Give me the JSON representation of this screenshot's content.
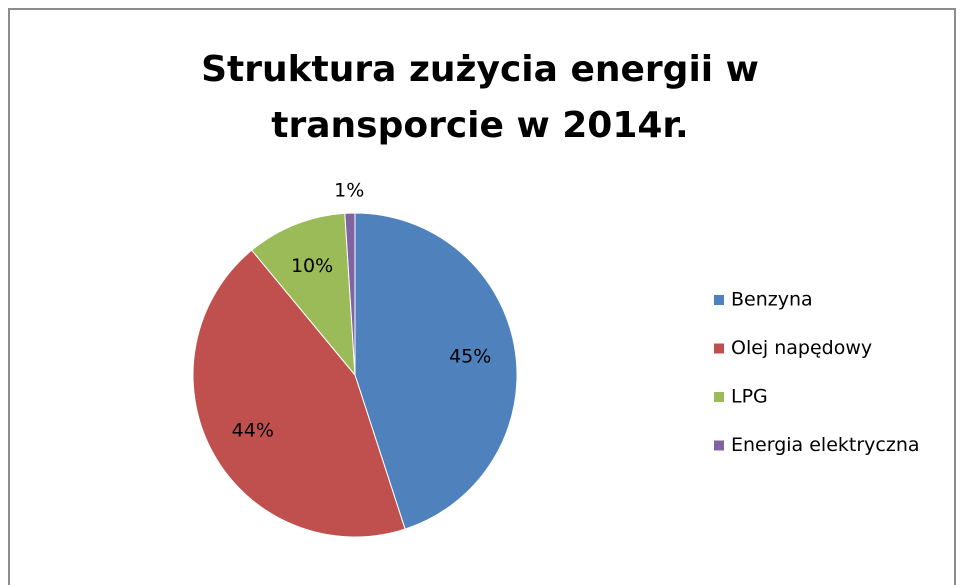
{
  "chart_data": {
    "type": "pie",
    "title": "Struktura zużycia energii w transporcie w 2014r.",
    "categories": [
      "Benzyna",
      "Olej napędowy",
      "LPG",
      "Energia elektryczna"
    ],
    "values": [
      45,
      44,
      10,
      1
    ],
    "value_labels": [
      "45%",
      "44%",
      "10%",
      "1%"
    ],
    "colors": [
      "#4f81bd",
      "#c0504d",
      "#9bbb59",
      "#8064a2"
    ],
    "legend": "right"
  }
}
